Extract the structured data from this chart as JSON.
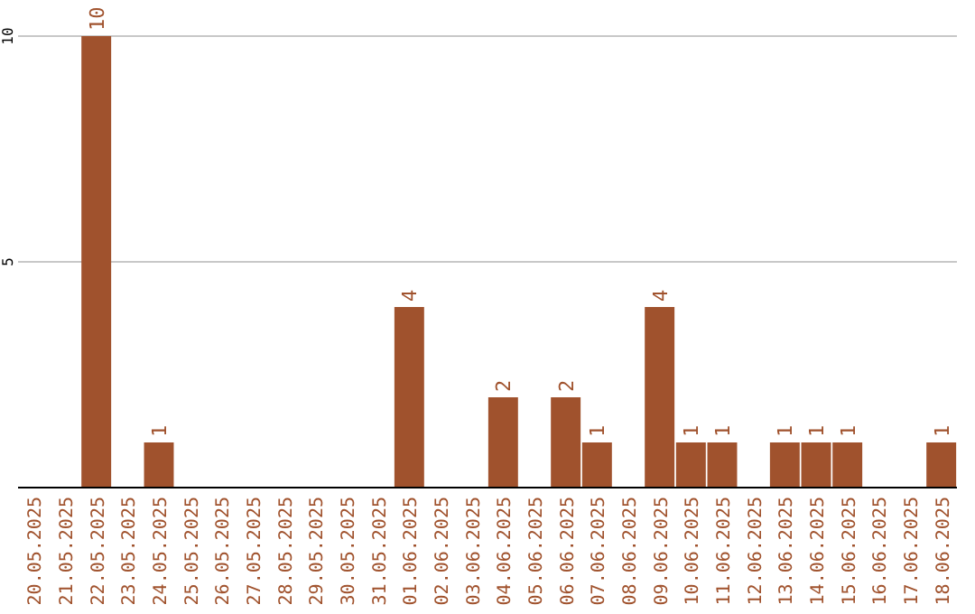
{
  "chart_data": {
    "type": "bar",
    "categories": [
      "20.05.2025",
      "21.05.2025",
      "22.05.2025",
      "23.05.2025",
      "24.05.2025",
      "25.05.2025",
      "26.05.2025",
      "27.05.2025",
      "28.05.2025",
      "29.05.2025",
      "30.05.2025",
      "31.05.2025",
      "01.06.2025",
      "02.06.2025",
      "03.06.2025",
      "04.06.2025",
      "05.06.2025",
      "06.06.2025",
      "07.06.2025",
      "08.06.2025",
      "09.06.2025",
      "10.06.2025",
      "11.06.2025",
      "12.06.2025",
      "13.06.2025",
      "14.06.2025",
      "15.06.2025",
      "16.06.2025",
      "17.06.2025",
      "18.06.2025"
    ],
    "values": [
      0,
      0,
      10,
      0,
      1,
      0,
      0,
      0,
      0,
      0,
      0,
      0,
      4,
      0,
      0,
      2,
      0,
      2,
      1,
      0,
      4,
      1,
      1,
      0,
      1,
      1,
      1,
      0,
      0,
      1
    ],
    "value_labels": [
      null,
      null,
      "10",
      null,
      "1",
      null,
      null,
      null,
      null,
      null,
      null,
      null,
      "4",
      null,
      null,
      "2",
      null,
      "2",
      "1",
      null,
      "4",
      "1",
      "1",
      null,
      "1",
      "1",
      "1",
      null,
      null,
      "1"
    ],
    "color": "#a0522d",
    "ylim": [
      0,
      10
    ],
    "yticks": [
      5,
      10
    ],
    "grid": "y"
  }
}
